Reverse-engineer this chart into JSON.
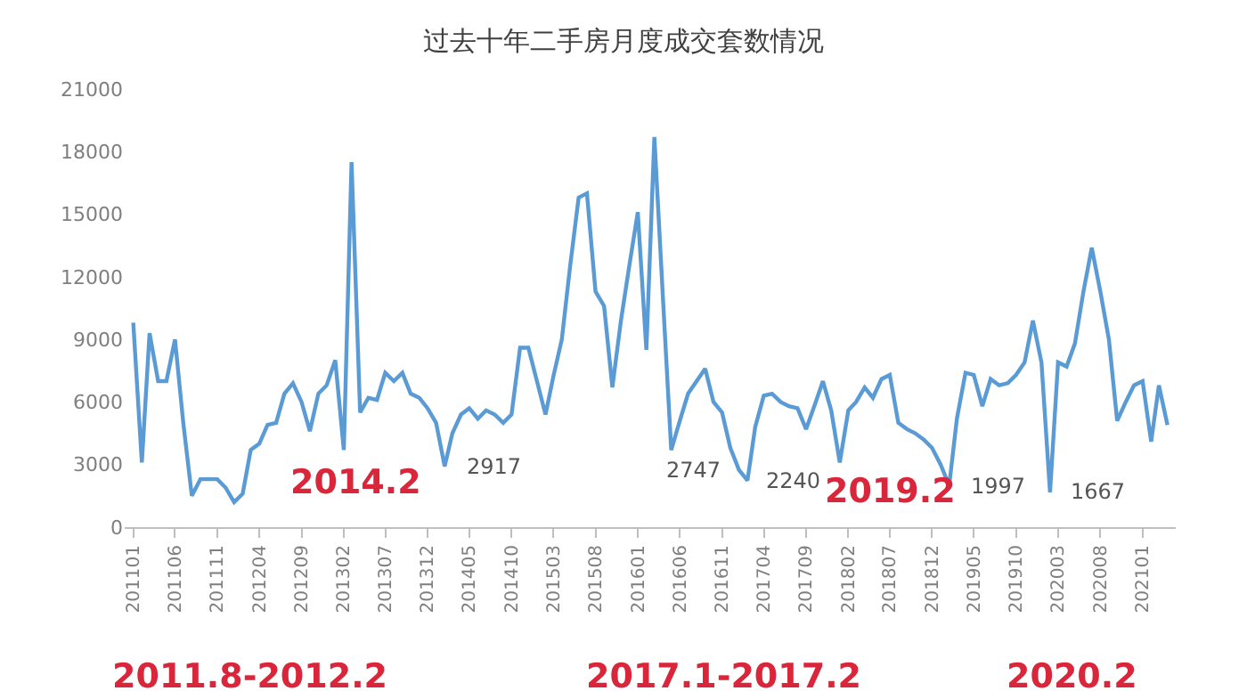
{
  "chart_data": {
    "type": "line",
    "title": "过去十年二手房月度成交套数情况",
    "x": [
      "2011-01",
      "2011-02",
      "2011-03",
      "2011-04",
      "2011-05",
      "2011-06",
      "2011-07",
      "2011-08",
      "2011-09",
      "2011-10",
      "2011-11",
      "2011-12",
      "2012-01",
      "2012-02",
      "2012-03",
      "2012-04",
      "2012-05",
      "2012-06",
      "2012-07",
      "2012-08",
      "2012-09",
      "2012-10",
      "2012-11",
      "2012-12",
      "2013-01",
      "2013-02",
      "2013-03",
      "2013-04",
      "2013-05",
      "2013-06",
      "2013-07",
      "2013-08",
      "2013-09",
      "2013-10",
      "2013-11",
      "2013-12",
      "2014-01",
      "2014-02",
      "2014-03",
      "2014-04",
      "2014-05",
      "2014-06",
      "2014-07",
      "2014-08",
      "2014-09",
      "2014-10",
      "2014-11",
      "2014-12",
      "2015-01",
      "2015-02",
      "2015-03",
      "2015-04",
      "2015-05",
      "2015-06",
      "2015-07",
      "2015-08",
      "2015-09",
      "2015-10",
      "2015-11",
      "2015-12",
      "2016-01",
      "2016-02",
      "2016-03",
      "2016-04",
      "2016-05",
      "2016-06",
      "2016-07",
      "2016-08",
      "2016-09",
      "2016-10",
      "2016-11",
      "2016-12",
      "2017-01",
      "2017-02",
      "2017-03",
      "2017-04",
      "2017-05",
      "2017-06",
      "2017-07",
      "2017-08",
      "2017-09",
      "2017-10",
      "2017-11",
      "2017-12",
      "2018-01",
      "2018-02",
      "2018-03",
      "2018-04",
      "2018-05",
      "2018-06",
      "2018-07",
      "2018-08",
      "2018-09",
      "2018-10",
      "2018-11",
      "2018-12",
      "2019-01",
      "2019-02",
      "2019-03",
      "2019-04",
      "2019-05",
      "2019-06",
      "2019-07",
      "2019-08",
      "2019-09",
      "2019-10",
      "2019-11",
      "2019-12",
      "2020-01",
      "2020-02",
      "2020-03",
      "2020-04",
      "2020-05",
      "2020-06",
      "2020-07",
      "2020-08",
      "2020-09",
      "2020-10",
      "2020-11",
      "2020-12",
      "2021-01",
      "2021-02",
      "2021-03",
      "2021-04"
    ],
    "series": [
      {
        "color": "#5b9bd5",
        "values": [
          9800,
          3100,
          9300,
          7000,
          7000,
          9000,
          5000,
          1500,
          2300,
          2300,
          2300,
          1900,
          1200,
          1600,
          3700,
          4000,
          4900,
          5000,
          6400,
          6900,
          6000,
          4600,
          6400,
          6800,
          8000,
          3700,
          17500,
          5500,
          6200,
          6100,
          7400,
          7000,
          7400,
          6400,
          6200,
          5700,
          5000,
          2917,
          4500,
          5400,
          5700,
          5200,
          5600,
          5400,
          5000,
          5400,
          8600,
          8600,
          7000,
          5400,
          7200,
          9000,
          12500,
          15800,
          16000,
          11300,
          10600,
          6700,
          9900,
          12500,
          15100,
          8500,
          18700,
          11000,
          3700,
          5100,
          6400,
          7000,
          7600,
          6000,
          5500,
          3800,
          2747,
          2240,
          4800,
          6300,
          6400,
          6000,
          5800,
          5700,
          4700,
          5800,
          7000,
          5600,
          3100,
          5600,
          6000,
          6700,
          6200,
          7100,
          7300,
          5000,
          4700,
          4500,
          4200,
          3800,
          3000,
          1997,
          5200,
          7400,
          7300,
          5800,
          7100,
          6800,
          6900,
          7300,
          7900,
          9900,
          7900,
          1667,
          7900,
          7700,
          8800,
          11300,
          13400,
          11300,
          9000,
          5100,
          6000,
          6800,
          7000,
          4100,
          6800,
          4900
        ],
        "value_labels": [
          null,
          null,
          null,
          null,
          null,
          null,
          null,
          null,
          null,
          null,
          null,
          null,
          null,
          null,
          null,
          null,
          null,
          null,
          null,
          null,
          null,
          null,
          null,
          null,
          null,
          null,
          null,
          null,
          null,
          null,
          null,
          null,
          null,
          null,
          null,
          null,
          null,
          "2917",
          null,
          null,
          null,
          null,
          null,
          null,
          null,
          null,
          null,
          null,
          null,
          null,
          null,
          null,
          null,
          null,
          null,
          null,
          null,
          null,
          null,
          null,
          null,
          null,
          null,
          null,
          null,
          null,
          null,
          null,
          null,
          null,
          null,
          null,
          "2747",
          "2240",
          null,
          null,
          null,
          null,
          null,
          null,
          null,
          null,
          null,
          null,
          null,
          null,
          null,
          null,
          null,
          null,
          null,
          null,
          null,
          null,
          null,
          null,
          null,
          "1997",
          null,
          null,
          null,
          null,
          null,
          null,
          null,
          null,
          null,
          null,
          null,
          "1667",
          null,
          null,
          null,
          null,
          null,
          null,
          null,
          null,
          null,
          null,
          null,
          null,
          null,
          null
        ]
      }
    ],
    "xlim": [
      "2010-12",
      "2021-05"
    ],
    "xticks": [
      {
        "value": "2011-01",
        "label": "201101"
      },
      {
        "value": "2011-06",
        "label": "201106"
      },
      {
        "value": "2011-11",
        "label": "201111"
      },
      {
        "value": "2012-04",
        "label": "201204"
      },
      {
        "value": "2012-09",
        "label": "201209"
      },
      {
        "value": "2013-02",
        "label": "201302"
      },
      {
        "value": "2013-07",
        "label": "201307"
      },
      {
        "value": "2013-12",
        "label": "201312"
      },
      {
        "value": "2014-05",
        "label": "201405"
      },
      {
        "value": "2014-10",
        "label": "201410"
      },
      {
        "value": "2015-03",
        "label": "201503"
      },
      {
        "value": "2015-08",
        "label": "201508"
      },
      {
        "value": "2016-01",
        "label": "201601"
      },
      {
        "value": "2016-06",
        "label": "201606"
      },
      {
        "value": "2016-11",
        "label": "201611"
      },
      {
        "value": "2017-04",
        "label": "201704"
      },
      {
        "value": "2017-09",
        "label": "201709"
      },
      {
        "value": "2018-02",
        "label": "201802"
      },
      {
        "value": "2018-07",
        "label": "201807"
      },
      {
        "value": "2018-12",
        "label": "201812"
      },
      {
        "value": "2019-05",
        "label": "201905"
      },
      {
        "value": "2019-10",
        "label": "201910"
      },
      {
        "value": "2020-03",
        "label": "202003"
      },
      {
        "value": "2020-08",
        "label": "202008"
      },
      {
        "value": "2021-01",
        "label": "202101"
      }
    ],
    "ylim": [
      0,
      21000
    ],
    "yticks": [
      0,
      3000,
      6000,
      9000,
      12000,
      15000,
      18000,
      21000
    ],
    "grid": false,
    "marker": "none",
    "line_style": "solid",
    "annotations": [
      "2011.8-2012.2",
      "2014.2",
      "2017.1-2017.2",
      "2019.2",
      "2020.2"
    ]
  }
}
